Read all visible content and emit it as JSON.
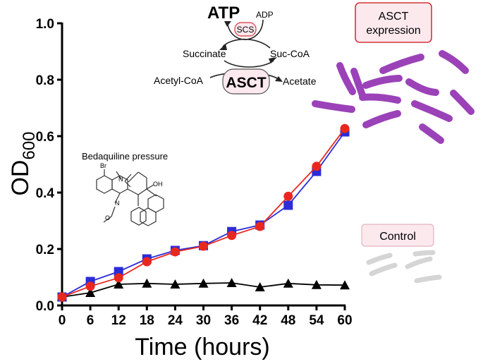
{
  "chart_data": {
    "type": "line",
    "title": "",
    "xlabel": "Time (hours)",
    "ylabel": "OD",
    "ylabel_subscript": "600",
    "x": [
      0,
      6,
      12,
      18,
      24,
      30,
      36,
      42,
      48,
      54,
      60
    ],
    "xticks": [
      "0",
      "6",
      "12",
      "18",
      "24",
      "30",
      "36",
      "42",
      "48",
      "54",
      "60"
    ],
    "yticks": [
      "0.0",
      "0.2",
      "0.4",
      "0.6",
      "0.8",
      "1.0"
    ],
    "xlim": [
      0,
      60
    ],
    "ylim": [
      0,
      1.0
    ],
    "grid": false,
    "series": [
      {
        "color": "#2b2bd9",
        "marker": "square",
        "values": [
          0.03,
          0.085,
          0.12,
          0.165,
          0.195,
          0.212,
          0.262,
          0.285,
          0.355,
          0.475,
          0.615
        ]
      },
      {
        "color": "#e8281f",
        "marker": "circle",
        "values": [
          0.03,
          0.068,
          0.098,
          0.155,
          0.19,
          0.21,
          0.248,
          0.28,
          0.387,
          0.493,
          0.627
        ]
      },
      {
        "color": "#000000",
        "marker": "triangle",
        "values": [
          0.03,
          0.045,
          0.075,
          0.078,
          0.075,
          0.078,
          0.08,
          0.065,
          0.078,
          0.073,
          0.072
        ]
      }
    ]
  },
  "annotations": {
    "atp": "ATP",
    "adp": "ADP",
    "scs": "SCS",
    "succinate": "Succinate",
    "suc_coa": "Suc-CoA",
    "acetyl_coa": "Acetyl-CoA",
    "asct": "ASCT",
    "acetate": "Acetate",
    "bedaquiline": "Bedaquiline pressure",
    "asct_expression_line1": "ASCT",
    "asct_expression_line2": "expression",
    "control": "Control",
    "mol_br": "Br",
    "mol_n1": "N",
    "mol_n2": "N",
    "mol_oh": "OH",
    "mol_o": "O"
  },
  "colors": {
    "asct_red": "#d6333a",
    "bacteria_purple": "#9b42b8",
    "bacteria_grey": "#d5d5d5",
    "control_box_fill": "#fbe9ee",
    "expression_box_fill": "#fbe9ee"
  }
}
